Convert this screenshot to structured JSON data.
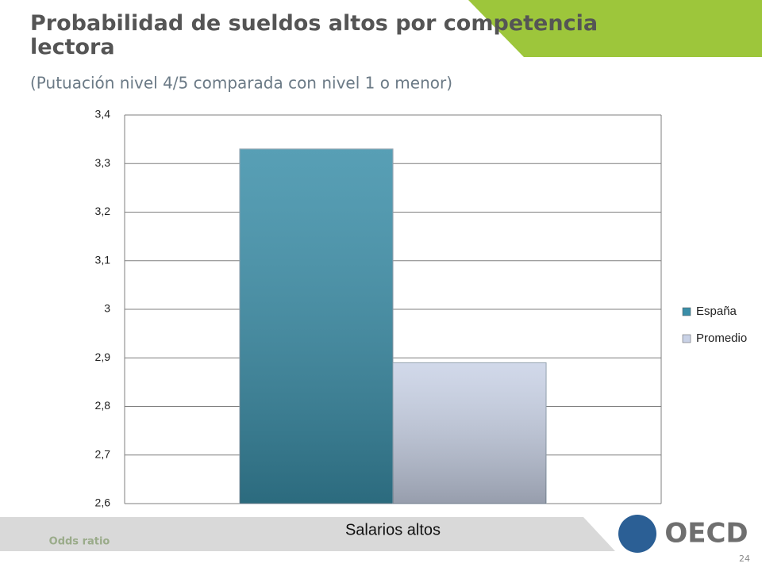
{
  "chart_data": {
    "type": "bar",
    "title": "Probabilidad de sueldos altos por competencia lectora",
    "subtitle": "(Putuación nivel 4/5 comparada con nivel 1 o menor)",
    "y_label": "Odds ratio",
    "categories": [
      "Salarios altos"
    ],
    "series": [
      {
        "name": "España",
        "color": "#3a8ea8",
        "values": [
          3.33
        ]
      },
      {
        "name": "Promedio",
        "color": "#c9d2e6",
        "values": [
          2.89
        ]
      }
    ],
    "ylim": [
      2.6,
      3.4
    ],
    "yticks": [
      {
        "value": 2.6,
        "label": "2,6"
      },
      {
        "value": 2.7,
        "label": "2,7"
      },
      {
        "value": 2.8,
        "label": "2,8"
      },
      {
        "value": 2.9,
        "label": "2,9"
      },
      3,
      {
        "value": 3.1,
        "label": "3,1"
      },
      {
        "value": 3.2,
        "label": "3,2"
      },
      {
        "value": 3.3,
        "label": "3,3"
      },
      {
        "value": 3.4,
        "label": "3,4"
      }
    ],
    "grid": true,
    "legend": "right"
  },
  "logo_text": "OECD",
  "page_number": "24"
}
